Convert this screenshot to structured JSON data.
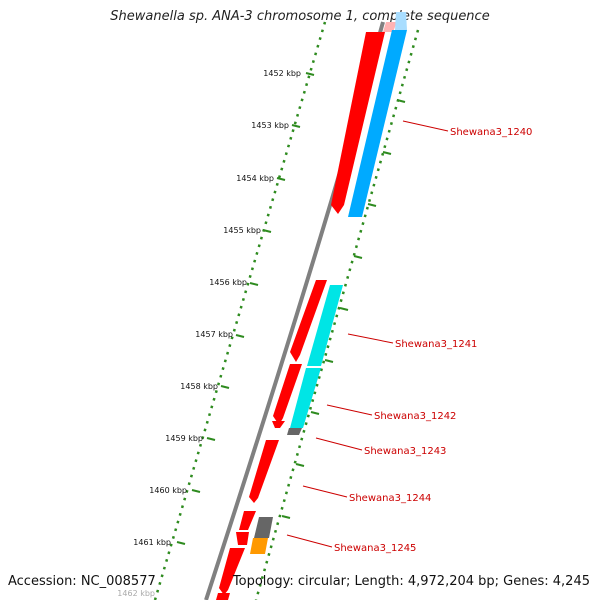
{
  "title": "Shewanella sp. ANA-3 chromosome 1, complete sequence",
  "footer": {
    "accession": "Accession: NC_008577",
    "topology": "Topology: circular; Length: 4,972,204 bp; Genes: 4,245"
  },
  "ticks": [
    "1452 kbp",
    "1453 kbp",
    "1454 kbp",
    "1455 kbp",
    "1456 kbp",
    "1457 kbp",
    "1458 kbp",
    "1459 kbp",
    "1460 kbp",
    "1461 kbp",
    "1462 kbp"
  ],
  "gene_labels": [
    "Shewana3_1240",
    "Shewana3_1241",
    "Shewana3_1242",
    "Shewana3_1243",
    "Shewana3_1244",
    "Shewana3_1245"
  ],
  "colors": {
    "forward_gene": "#ff0000",
    "forward_gene_light": "#ffb3b3",
    "cds_blue": "#00aaff",
    "cds_blue_light": "#a8ddff",
    "cds_cyan": "#00e5e5",
    "other_grey": "#666666",
    "other_orange": "#ff9900",
    "backbone": "#808080",
    "tick_green": "#2e8b1f",
    "label_red": "#cc0000"
  }
}
